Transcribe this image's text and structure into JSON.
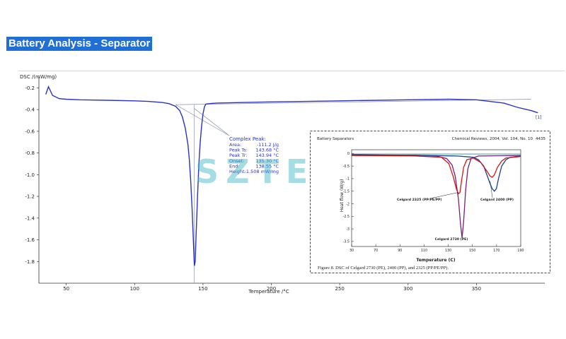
{
  "page": {
    "title": "Battery Analysis - Separator"
  },
  "colors": {
    "accent": "#1f6fd6",
    "main_curve": "#2a32c6",
    "watermark": "#3bb6c6",
    "pe": "#7a1f7a",
    "pp": "#1c3f8f",
    "trilayer": "#d01818",
    "baseline": "#2e8b8b"
  },
  "watermark": {
    "text": "SZTECH",
    "registered": "®"
  },
  "main_chart": {
    "ylabel": "DSC /(mW/mg)",
    "xlabel": "Temperature /°C",
    "corner_tag": "[1]",
    "yticks": [
      "-0.2",
      "-0.4",
      "-0.6",
      "-0.8",
      "-1.0",
      "-1.2",
      "-1.4",
      "-1.6",
      "-1.8"
    ],
    "xticks": [
      "50",
      "100",
      "150",
      "200",
      "250",
      "300",
      "350"
    ],
    "peak_info": {
      "heading": "Complex Peak:",
      "rows": [
        {
          "label": "Area:",
          "value": "-111.2 J/g"
        },
        {
          "label": "Peak Ts:",
          "value": "143.68 °C"
        },
        {
          "label": "Peak Tr:",
          "value": "143.94 °C"
        },
        {
          "label": "Onset:",
          "value": "135.30 °C"
        },
        {
          "label": "End:",
          "value": "138.55 °C"
        },
        {
          "label": "Height:",
          "value": "1.508 mW/mg"
        }
      ]
    }
  },
  "inset_chart": {
    "header_left": "Battery Separators",
    "header_right": "Chemical Reviews, 2004, Vol. 104, No. 10",
    "page_number": "4435",
    "ylabel": "Heat flow (W/g)",
    "xlabel": "Temperature (C)",
    "yticks": [
      "0",
      "-0.5",
      "-1",
      "-1.5",
      "-2",
      "-2.5",
      "-3",
      "-3.5"
    ],
    "xticks": [
      "30",
      "70",
      "90",
      "110",
      "130",
      "150",
      "170",
      "190"
    ],
    "labels": {
      "trilayer": "Celgard 2325 (PP/PE/PP)",
      "pp": "Celgard 2400 (PP)",
      "pe": "Celgard 2730 (PE)"
    },
    "caption": "Figure 8.  DSC of Celgard 2730 (PE), 2400 (PP), and 2325 (PP/PE/PP)."
  },
  "chart_data": [
    {
      "type": "line",
      "title": "",
      "xlabel": "Temperature /°C",
      "ylabel": "DSC /(mW/mg)",
      "xlim": [
        30,
        400
      ],
      "ylim": [
        -2.0,
        -0.1
      ],
      "grid": false,
      "series": [
        {
          "x": [
            35,
            37,
            40,
            45,
            50,
            60,
            80,
            100,
            110,
            120,
            125,
            130,
            133,
            135,
            137,
            139,
            140,
            141,
            142,
            143,
            143.7,
            144.3,
            145,
            146,
            147,
            148,
            149,
            150,
            151,
            152,
            155,
            160,
            180,
            200,
            250,
            300,
            330,
            350,
            370,
            380,
            390,
            395
          ],
          "y": [
            -0.26,
            -0.19,
            -0.27,
            -0.3,
            -0.305,
            -0.31,
            -0.315,
            -0.32,
            -0.325,
            -0.335,
            -0.345,
            -0.37,
            -0.41,
            -0.47,
            -0.57,
            -0.72,
            -0.86,
            -1.05,
            -1.3,
            -1.62,
            -1.84,
            -1.8,
            -1.55,
            -1.2,
            -0.9,
            -0.7,
            -0.55,
            -0.44,
            -0.38,
            -0.35,
            -0.345,
            -0.34,
            -0.335,
            -0.33,
            -0.32,
            -0.31,
            -0.305,
            -0.31,
            -0.34,
            -0.38,
            -0.41,
            -0.43
          ]
        }
      ]
    },
    {
      "type": "line",
      "title": "",
      "xlabel": "Temperature (C)",
      "ylabel": "Heat flow (W/g)",
      "xlim": [
        30,
        190
      ],
      "ylim": [
        -3.7,
        0.15
      ],
      "grid": false,
      "series": [
        {
          "name": "Celgard 2730 (PE)",
          "x": [
            30,
            60,
            90,
            110,
            120,
            125,
            128,
            131,
            133,
            134.5,
            136,
            138,
            140,
            143,
            150,
            170,
            190
          ],
          "y": [
            -0.05,
            -0.06,
            -0.07,
            -0.1,
            -0.2,
            -0.45,
            -0.9,
            -1.8,
            -2.8,
            -3.35,
            -2.7,
            -1.4,
            -0.6,
            -0.2,
            -0.1,
            -0.09,
            -0.08
          ]
        },
        {
          "name": "Celgard 2400 (PP)",
          "x": [
            30,
            90,
            130,
            145,
            150,
            155,
            158,
            161,
            163,
            165,
            167,
            169,
            172,
            176,
            180,
            190
          ],
          "y": [
            -0.06,
            -0.07,
            -0.1,
            -0.15,
            -0.25,
            -0.5,
            -0.85,
            -1.2,
            -1.4,
            -1.5,
            -1.4,
            -1.0,
            -0.5,
            -0.25,
            -0.15,
            -0.1
          ]
        },
        {
          "name": "Celgard 2325 (PP/PE/PP)",
          "x": [
            30,
            90,
            115,
            122,
            126,
            129,
            131,
            132.5,
            134,
            136,
            139,
            145,
            152,
            158,
            161,
            163,
            165,
            168,
            172,
            176,
            190
          ],
          "y": [
            -0.08,
            -0.1,
            -0.15,
            -0.4,
            -0.9,
            -1.4,
            -1.6,
            -1.55,
            -1.1,
            -0.55,
            -0.25,
            -0.18,
            -0.35,
            -0.7,
            -0.9,
            -0.95,
            -0.85,
            -0.55,
            -0.3,
            -0.18,
            -0.12
          ]
        }
      ]
    }
  ]
}
